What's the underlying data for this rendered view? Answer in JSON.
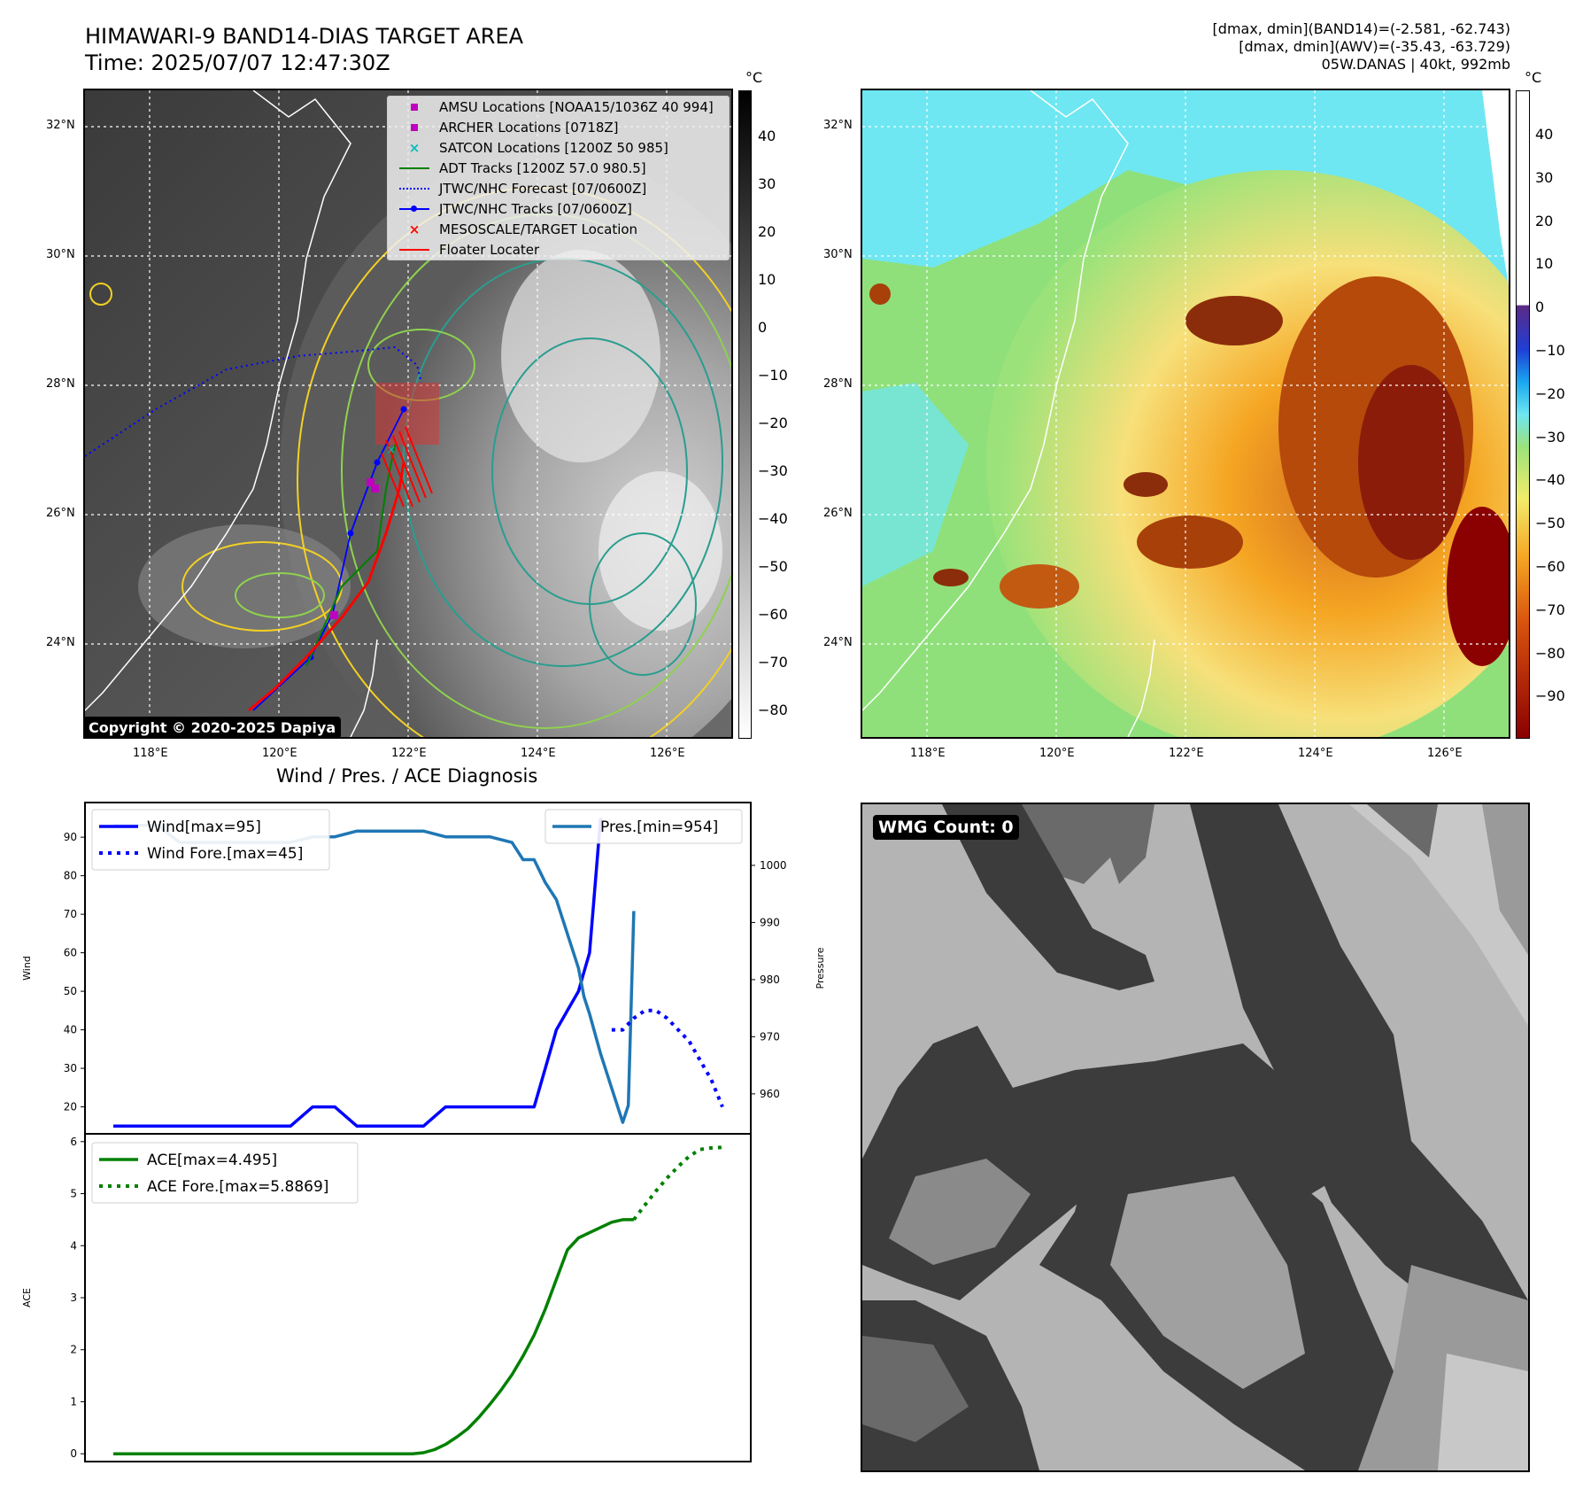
{
  "header": {
    "title_line1": "HIMAWARI-9 BAND14-DIAS TARGET AREA",
    "title_line2": "Time: 2025/07/07 12:47:30Z",
    "info_line1": "[dmax, dmin](BAND14)=(-2.581, -62.743)",
    "info_line2": "[dmax, dmin](AWV)=(-35.43, -63.729)",
    "info_line3": "05W.DANAS | 40kt, 992mb"
  },
  "map_axes": {
    "lon_ticks": [
      "118°E",
      "120°E",
      "122°E",
      "124°E",
      "126°E"
    ],
    "lat_ticks": [
      "32°N",
      "30°N",
      "28°N",
      "26°N",
      "24°N"
    ]
  },
  "map_legend": [
    {
      "label": "AMSU Locations [NOAA15/1036Z 40 994]",
      "symbol": "square",
      "color": "#bf00bf"
    },
    {
      "label": "ARCHER Locations [0718Z]",
      "symbol": "square",
      "color": "#bf00bf"
    },
    {
      "label": "SATCON Locations [1200Z 50 985]",
      "symbol": "x",
      "color": "#00bfbf"
    },
    {
      "label": "ADT Tracks [1200Z 57.0 980.5]",
      "symbol": "line",
      "color": "#008000"
    },
    {
      "label": "JTWC/NHC Forecast [07/0600Z]",
      "symbol": "dotted",
      "color": "#0000ff"
    },
    {
      "label": "JTWC/NHC Tracks [07/0600Z]",
      "symbol": "line-dot",
      "color": "#0000ff"
    },
    {
      "label": "MESOSCALE/TARGET Location",
      "symbol": "x",
      "color": "#ff0000"
    },
    {
      "label": "Floater Locater",
      "symbol": "line",
      "color": "#ff0000"
    }
  ],
  "copyright": "Copyright © 2020-2025 Dapiya",
  "colorbar_gray": {
    "unit": "°C",
    "ticks": [
      "40",
      "30",
      "20",
      "10",
      "0",
      "−10",
      "−20",
      "−30",
      "−40",
      "−50",
      "−60",
      "−70",
      "−80"
    ]
  },
  "colorbar_color": {
    "unit": "°C",
    "ticks": [
      "40",
      "30",
      "20",
      "10",
      "0",
      "−10",
      "−20",
      "−30",
      "−40",
      "−50",
      "−60",
      "−70",
      "−80",
      "−90"
    ]
  },
  "wmg_label": "WMG Count: 0",
  "colors": {
    "wind": "#0000ff",
    "pressure": "#1f77b4",
    "ace": "#008000"
  },
  "chart_data": [
    {
      "type": "line",
      "title": "Wind / Pres. / ACE Diagnosis",
      "ylabel": "Wind",
      "ylabel_right": "Pressure",
      "ylim": [
        13,
        99
      ],
      "ylim_right": [
        953,
        1011
      ],
      "yticks": [
        20,
        30,
        40,
        50,
        60,
        70,
        80,
        90
      ],
      "yticks_right": [
        960,
        970,
        980,
        990,
        1000
      ],
      "x_range": [
        0,
        55
      ],
      "series": [
        {
          "name": "Wind[max=95]",
          "axis": "left",
          "style": "solid",
          "x": [
            0,
            2,
            4,
            6,
            8,
            10,
            11,
            12,
            13,
            14,
            16,
            18,
            19,
            20,
            22,
            24,
            26,
            28,
            30,
            32,
            34,
            35,
            36,
            38,
            39,
            40,
            41,
            42,
            42.5,
            43,
            44
          ],
          "values": [
            15,
            15,
            15,
            15,
            15,
            15,
            15,
            15,
            15,
            15,
            15,
            20,
            20,
            20,
            15,
            15,
            15,
            15,
            20,
            20,
            20,
            20,
            20,
            20,
            30,
            40,
            45,
            50,
            55,
            60,
            95
          ]
        },
        {
          "name": "Pres.[min=954]",
          "axis": "right",
          "style": "solid",
          "x": [
            0,
            2,
            4,
            6,
            8,
            10,
            12,
            14,
            16,
            18,
            20,
            22,
            24,
            26,
            28,
            30,
            32,
            34,
            36,
            37,
            38,
            39,
            40,
            41,
            42,
            42.5,
            43,
            44,
            45,
            46,
            46.5,
            47
          ],
          "values": [
            1007,
            1007,
            1007,
            1004,
            1004,
            1004,
            1004,
            1004,
            1004,
            1005,
            1005,
            1006,
            1006,
            1006,
            1006,
            1005,
            1005,
            1005,
            1004,
            1001,
            1001,
            997,
            994,
            988,
            982,
            977,
            974,
            967,
            961,
            955,
            958,
            992
          ]
        },
        {
          "name": "Wind Fore.[max=45]",
          "axis": "left",
          "style": "dotted",
          "x": [
            45,
            46,
            47,
            48,
            49,
            50,
            51,
            52,
            53,
            54,
            55
          ],
          "values": [
            40,
            40,
            43,
            45,
            45,
            43,
            40,
            37,
            32,
            27,
            20
          ]
        }
      ]
    },
    {
      "type": "line",
      "ylabel": "ACE",
      "ylim": [
        -0.15,
        6.15
      ],
      "yticks": [
        0,
        1,
        2,
        3,
        4,
        5,
        6
      ],
      "x_range": [
        0,
        55
      ],
      "series": [
        {
          "name": "ACE[max=4.495]",
          "style": "solid",
          "x": [
            0,
            5,
            10,
            15,
            20,
            25,
            27,
            28,
            29,
            30,
            31,
            32,
            33,
            34,
            35,
            36,
            37,
            38,
            39,
            40,
            41,
            42,
            43,
            44,
            45,
            46,
            47
          ],
          "values": [
            0,
            0,
            0,
            0,
            0,
            0,
            0,
            0.02,
            0.08,
            0.18,
            0.32,
            0.48,
            0.7,
            0.95,
            1.22,
            1.52,
            1.88,
            2.28,
            2.78,
            3.35,
            3.92,
            4.15,
            4.25,
            4.35,
            4.45,
            4.5,
            4.5
          ]
        },
        {
          "name": "ACE Fore.[max=5.8869]",
          "style": "dotted",
          "x": [
            47,
            48,
            49,
            50,
            51,
            52,
            53,
            54,
            55
          ],
          "values": [
            4.5,
            4.78,
            5.05,
            5.3,
            5.52,
            5.72,
            5.85,
            5.88,
            5.89
          ]
        }
      ]
    }
  ]
}
